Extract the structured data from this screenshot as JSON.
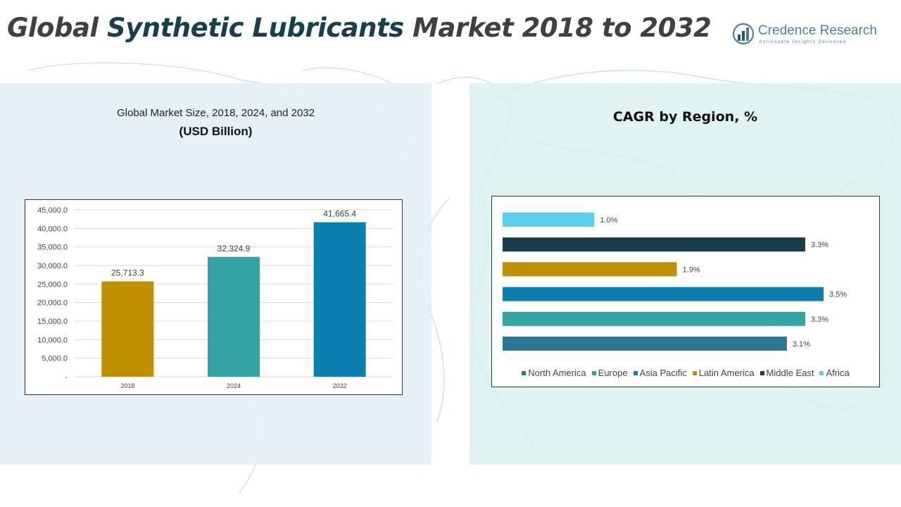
{
  "header": {
    "title_part1": "Global ",
    "title_part2": "Synthetic Lubricants",
    "title_part3": " Market 2018 to 2032",
    "logo_name": "Credence Research",
    "logo_tagline": "Actionable Insights Delivered"
  },
  "left_panel": {
    "subtitle": "Global Market Size, 2018, 2024, and 2032",
    "unit": "(USD Billion)"
  },
  "right_panel": {
    "title": "CAGR by Region, %"
  },
  "chart_data": [
    {
      "type": "bar",
      "title": "Global Market Size, 2018, 2024, and 2032",
      "ylabel": "(USD Billion)",
      "categories": [
        "2018",
        "2024",
        "2032"
      ],
      "values": [
        25713.3,
        32324.9,
        41665.4
      ],
      "value_labels": [
        "25,713.3",
        "32,324.9",
        "41,665.4"
      ],
      "colors": [
        "#bf8f00",
        "#33a3a3",
        "#0b7fb0"
      ],
      "ylim": [
        0,
        45000
      ],
      "yticks": [
        0,
        5000,
        10000,
        15000,
        20000,
        25000,
        30000,
        35000,
        40000,
        45000
      ],
      "ytick_labels": [
        "-",
        "5,000.0",
        "10,000.0",
        "15,000.0",
        "20,000.0",
        "25,000.0",
        "30,000.0",
        "35,000.0",
        "40,000.0",
        "45,000.0"
      ],
      "grid": true
    },
    {
      "type": "bar",
      "orientation": "horizontal",
      "title": "CAGR by Region, %",
      "series": [
        {
          "name": "North America",
          "value": 3.1,
          "label": "3.1%",
          "color": "#2e7598"
        },
        {
          "name": "Europe",
          "value": 3.3,
          "label": "3.3%",
          "color": "#33a3a3"
        },
        {
          "name": "Asia Pacific",
          "value": 3.5,
          "label": "3.5%",
          "color": "#0b7fb0"
        },
        {
          "name": "Latin America",
          "value": 1.9,
          "label": "1.9%",
          "color": "#bf8f00"
        },
        {
          "name": "Middle East",
          "value": 3.3,
          "label": "3.3%",
          "color": "#183d4a"
        },
        {
          "name": "Africa",
          "value": 1.0,
          "label": "1.0%",
          "color": "#5ccdf3"
        }
      ],
      "legend_position": "bottom",
      "grid": false
    }
  ]
}
